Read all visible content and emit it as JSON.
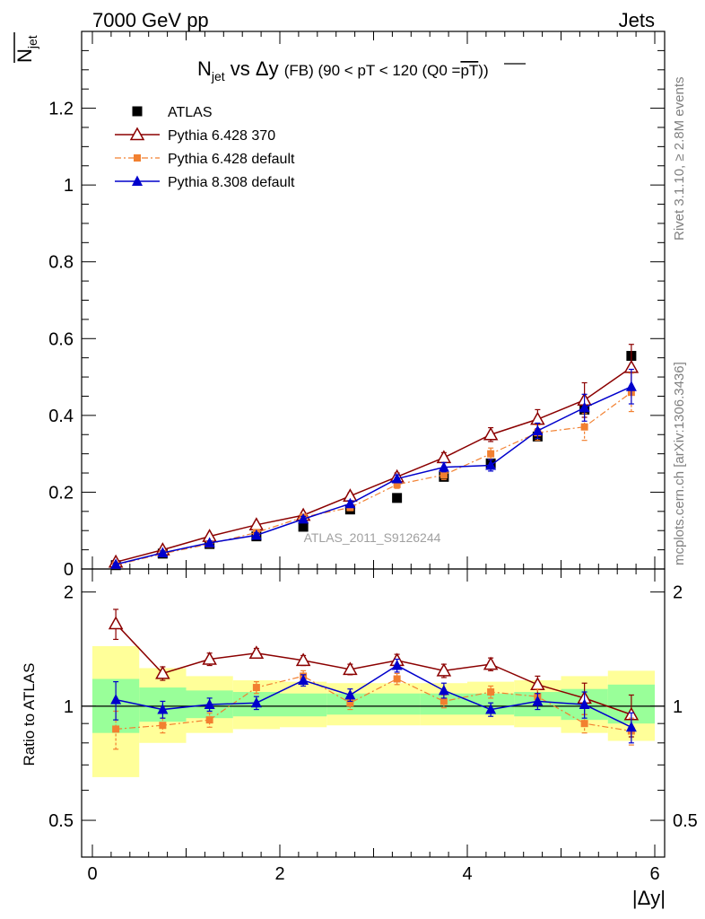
{
  "header": {
    "left": "7000 GeV pp",
    "right": "Jets"
  },
  "side": {
    "rivet": "Rivet 3.1.10, ≥ 2.8M events",
    "mcplots": "mcplots.cern.ch [arXiv:1306.3436]"
  },
  "title": {
    "main_prefix": "N",
    "main_sub": "jet",
    "main_mid": " vs Δy ",
    "main_fb": "(FB)",
    "main_cut": " (90 < pT < 120 (Q0 =",
    "main_pt": "pT",
    "main_end": "))"
  },
  "ylabel_top": {
    "prefix": "N",
    "sub": "jet"
  },
  "ylabel_bottom": "Ratio to ATLAS",
  "xlabel": "|Δy|",
  "watermark": "ATLAS_2011_S9126244",
  "colors": {
    "atlas": "#000000",
    "p6_370": "#8b0000",
    "p6_def": "#f28030",
    "p8_def": "#0000cc",
    "band_inner": "#99ff99",
    "band_outer": "#ffff99"
  },
  "chart_data": [
    {
      "type": "scatter",
      "panel": "main",
      "xlim": [
        0,
        6
      ],
      "ylim": [
        0,
        1.4
      ],
      "x_ticks": [
        0,
        2,
        4,
        6
      ],
      "y_ticks": [
        0,
        0.2,
        0.4,
        0.6,
        0.8,
        1,
        1.2
      ],
      "y_tick_labels": [
        "0",
        "0.2",
        "0.4",
        "0.6",
        "0.8",
        "1",
        "1.2"
      ],
      "x": [
        0.25,
        0.75,
        1.25,
        1.75,
        2.25,
        2.75,
        3.25,
        3.75,
        4.25,
        4.75,
        5.25,
        5.75
      ],
      "series": [
        {
          "name": "ATLAS",
          "key": "atlas",
          "values": [
            0.01,
            0.04,
            0.065,
            0.085,
            0.11,
            0.155,
            0.185,
            0.24,
            0.275,
            0.345,
            0.415,
            0.555
          ]
        },
        {
          "name": "Pythia 6.428 370",
          "key": "p6_370",
          "values": [
            0.018,
            0.05,
            0.085,
            0.115,
            0.14,
            0.19,
            0.24,
            0.29,
            0.35,
            0.39,
            0.44,
            0.525
          ],
          "errors": [
            0.004,
            0.006,
            0.006,
            0.006,
            0.007,
            0.008,
            0.01,
            0.013,
            0.018,
            0.025,
            0.045,
            0.06
          ]
        },
        {
          "name": "Pythia 6.428 default",
          "key": "p6_def",
          "values": [
            0.01,
            0.04,
            0.065,
            0.095,
            0.135,
            0.16,
            0.22,
            0.245,
            0.3,
            0.355,
            0.37,
            0.46
          ],
          "errors": [
            0.003,
            0.005,
            0.005,
            0.006,
            0.007,
            0.008,
            0.01,
            0.012,
            0.015,
            0.02,
            0.035,
            0.05
          ]
        },
        {
          "name": "Pythia 8.308 default",
          "key": "p8_def",
          "values": [
            0.012,
            0.042,
            0.068,
            0.088,
            0.13,
            0.17,
            0.235,
            0.265,
            0.27,
            0.36,
            0.42,
            0.475
          ],
          "errors": [
            0.003,
            0.005,
            0.005,
            0.006,
            0.007,
            0.008,
            0.01,
            0.012,
            0.015,
            0.02,
            0.035,
            0.045
          ]
        }
      ]
    },
    {
      "type": "scatter",
      "panel": "ratio",
      "xlim": [
        0,
        6
      ],
      "ylim": [
        0.4,
        2.3
      ],
      "y_scale": "log",
      "y_ticks": [
        0.5,
        1,
        2
      ],
      "y_tick_labels": [
        "0.5",
        "1",
        "2"
      ],
      "x_ticks": [
        0,
        2,
        4,
        6
      ],
      "x_tick_labels": [
        "0",
        "2",
        "4",
        "6"
      ],
      "bin_edges": [
        0,
        0.5,
        1,
        1.5,
        2,
        2.5,
        3,
        3.5,
        4,
        4.5,
        5,
        5.5,
        6
      ],
      "band_inner": [
        [
          0.85,
          1.18
        ],
        [
          0.91,
          1.12
        ],
        [
          0.93,
          1.1
        ],
        [
          0.94,
          1.09
        ],
        [
          0.94,
          1.08
        ],
        [
          0.95,
          1.08
        ],
        [
          0.95,
          1.08
        ],
        [
          0.95,
          1.08
        ],
        [
          0.95,
          1.08
        ],
        [
          0.94,
          1.09
        ],
        [
          0.92,
          1.11
        ],
        [
          0.9,
          1.14
        ]
      ],
      "band_outer": [
        [
          0.65,
          1.44
        ],
        [
          0.8,
          1.26
        ],
        [
          0.85,
          1.2
        ],
        [
          0.87,
          1.17
        ],
        [
          0.88,
          1.16
        ],
        [
          0.89,
          1.15
        ],
        [
          0.89,
          1.15
        ],
        [
          0.89,
          1.15
        ],
        [
          0.89,
          1.16
        ],
        [
          0.88,
          1.17
        ],
        [
          0.85,
          1.2
        ],
        [
          0.81,
          1.24
        ]
      ],
      "x": [
        0.25,
        0.75,
        1.25,
        1.75,
        2.25,
        2.75,
        3.25,
        3.75,
        4.25,
        4.75,
        5.25,
        5.75
      ],
      "series": [
        {
          "name": "Pythia 6.428 370",
          "key": "p6_370",
          "values": [
            1.65,
            1.22,
            1.33,
            1.38,
            1.32,
            1.25,
            1.32,
            1.24,
            1.29,
            1.14,
            1.05,
            0.95
          ],
          "errors": [
            0.15,
            0.05,
            0.05,
            0.04,
            0.04,
            0.04,
            0.05,
            0.05,
            0.05,
            0.06,
            0.1,
            0.12
          ]
        },
        {
          "name": "Pythia 6.428 default",
          "key": "p6_def",
          "values": [
            0.87,
            0.89,
            0.92,
            1.12,
            1.2,
            1.02,
            1.18,
            1.03,
            1.09,
            1.06,
            0.9,
            0.86
          ],
          "errors": [
            0.1,
            0.04,
            0.04,
            0.04,
            0.04,
            0.04,
            0.04,
            0.04,
            0.04,
            0.05,
            0.05,
            0.07
          ]
        },
        {
          "name": "Pythia 8.308 default",
          "key": "p8_def",
          "values": [
            1.04,
            0.98,
            1.01,
            1.02,
            1.17,
            1.07,
            1.28,
            1.1,
            0.98,
            1.03,
            1.01,
            0.88
          ],
          "errors": [
            0.12,
            0.05,
            0.04,
            0.04,
            0.04,
            0.04,
            0.05,
            0.05,
            0.04,
            0.05,
            0.08,
            0.08
          ]
        }
      ]
    }
  ]
}
